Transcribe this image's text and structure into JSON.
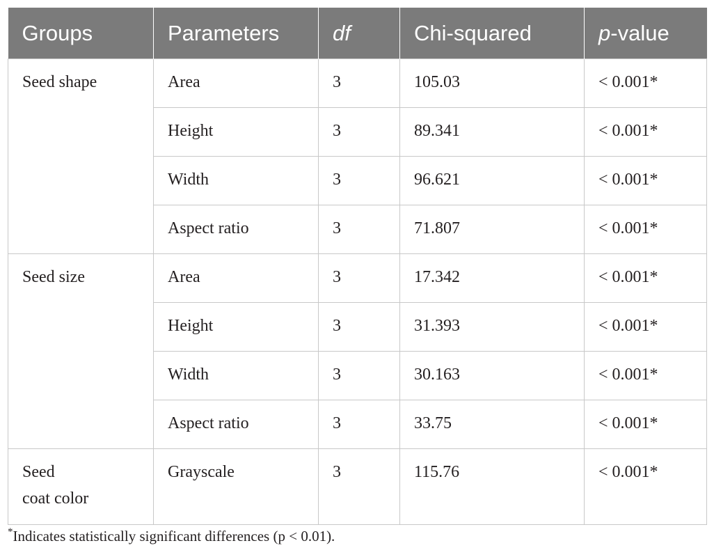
{
  "table": {
    "headers": {
      "groups": "Groups",
      "parameters": "Parameters",
      "df": "df",
      "chi_squared": "Chi-squared",
      "p_value_italic": "p",
      "p_value_rest": "-value"
    },
    "groups": [
      {
        "name": "Seed shape",
        "rows": [
          {
            "parameter": "Area",
            "df": "3",
            "chi": "105.03",
            "p": "< 0.001*"
          },
          {
            "parameter": "Height",
            "df": "3",
            "chi": "89.341",
            "p": "< 0.001*"
          },
          {
            "parameter": "Width",
            "df": "3",
            "chi": "96.621",
            "p": "< 0.001*"
          },
          {
            "parameter": "Aspect ratio",
            "df": "3",
            "chi": "71.807",
            "p": "< 0.001*"
          }
        ]
      },
      {
        "name": "Seed size",
        "rows": [
          {
            "parameter": "Area",
            "df": "3",
            "chi": "17.342",
            "p": "< 0.001*"
          },
          {
            "parameter": "Height",
            "df": "3",
            "chi": "31.393",
            "p": "< 0.001*"
          },
          {
            "parameter": "Width",
            "df": "3",
            "chi": "30.163",
            "p": "< 0.001*"
          },
          {
            "parameter": "Aspect ratio",
            "df": "3",
            "chi": "33.75",
            "p": "< 0.001*"
          }
        ]
      },
      {
        "name_line1": "Seed",
        "name_line2": "coat color",
        "rows": [
          {
            "parameter": "Grayscale",
            "df": "3",
            "chi": "115.76",
            "p": "< 0.001*"
          }
        ]
      }
    ]
  },
  "footnote": {
    "marker": "*",
    "text": "Indicates statistically significant differences (p < 0.01)."
  },
  "colors": {
    "header_bg": "#7b7b7b",
    "header_text": "#ffffff",
    "grid": "#c8c8c8",
    "body_text": "#231f20"
  }
}
